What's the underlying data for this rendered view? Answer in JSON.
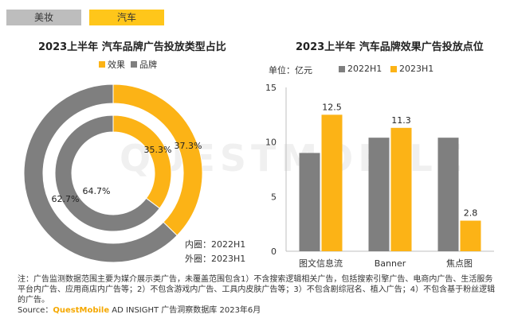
{
  "tabs": [
    {
      "label": "美妆",
      "active": false
    },
    {
      "label": "汽车",
      "active": true
    }
  ],
  "watermark": "QUESTMOBILE",
  "colors": {
    "effect": "#fcb316",
    "brand": "#7f7f7f",
    "dark": "#7f7f7f",
    "yellow": "#fcb316"
  },
  "chart_data": [
    {
      "type": "pie",
      "title": "2023上半年 汽车品牌广告投放类型占比",
      "legend": [
        "效果",
        "品牌"
      ],
      "inner_caption": "内圈：2022H1",
      "outer_caption": "外圈：2023H1",
      "rings": [
        {
          "name": "2022H1",
          "ring": "inner",
          "slices": [
            {
              "label": "效果",
              "value": 35.3,
              "text": "35.3%"
            },
            {
              "label": "品牌",
              "value": 64.7,
              "text": "64.7%"
            }
          ]
        },
        {
          "name": "2023H1",
          "ring": "outer",
          "slices": [
            {
              "label": "效果",
              "value": 37.3,
              "text": "37.3%"
            },
            {
              "label": "品牌",
              "value": 62.7,
              "text": "62.7%"
            }
          ]
        }
      ]
    },
    {
      "type": "bar",
      "title": "2023上半年 汽车品牌效果广告投放点位",
      "unit_label": "单位：亿元",
      "categories": [
        "图文信息流",
        "Banner",
        "焦点图"
      ],
      "series": [
        {
          "name": "2022H1",
          "values": [
            9.0,
            10.4,
            10.4
          ],
          "labels": [
            "",
            "",
            ""
          ]
        },
        {
          "name": "2023H1",
          "values": [
            12.5,
            11.3,
            2.8
          ],
          "labels": [
            "12.5",
            "11.3",
            "2.8"
          ]
        }
      ],
      "yticks": [
        "0",
        "5",
        "10",
        "15"
      ],
      "ylim": [
        0,
        15
      ]
    }
  ],
  "footer": {
    "note": "注：广告监测数据范围主要为媒介展示类广告，未覆盖范围包含1）不含搜索逻辑相关广告，包括搜索引擎广告、电商内广告、生活服务平台内广告、应用商店内广告等；2）不包含游戏内广告、工具内皮肤广告等；3）不包含剧综冠名、植入广告；4）不包含基于粉丝逻辑的广告。",
    "source_prefix": "Source：",
    "source_brand": "QuestMobile",
    "source_suffix": " AD INSIGHT 广告洞察数据库 2023年6月"
  }
}
